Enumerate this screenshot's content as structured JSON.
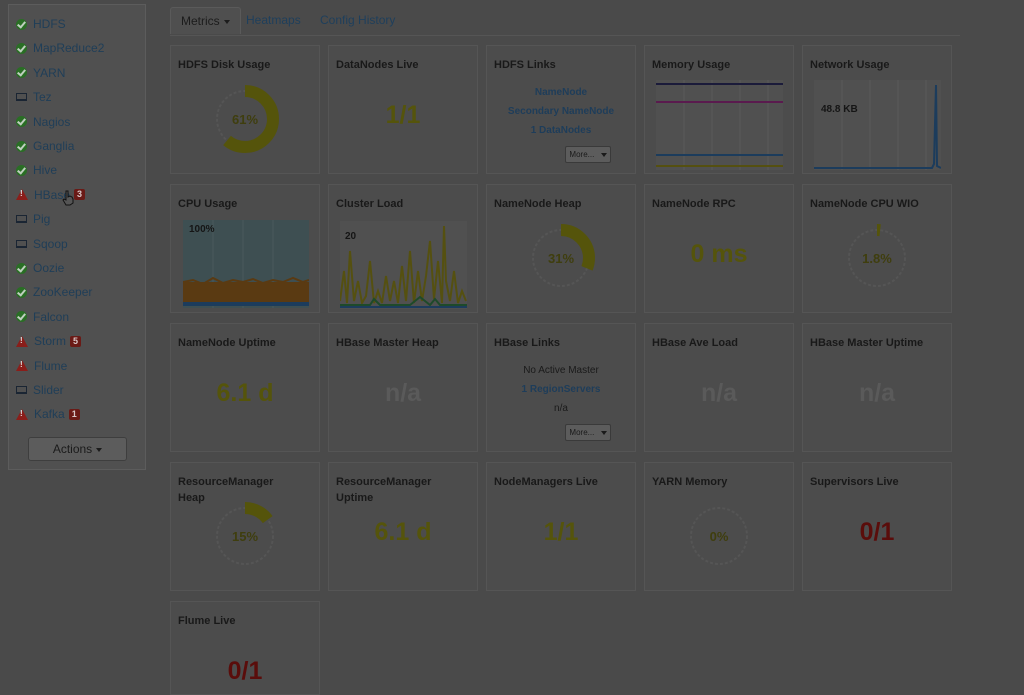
{
  "sidebar": {
    "items": [
      {
        "label": "HDFS",
        "status": "ok",
        "badge": ""
      },
      {
        "label": "MapReduce2",
        "status": "ok",
        "badge": ""
      },
      {
        "label": "YARN",
        "status": "ok",
        "badge": ""
      },
      {
        "label": "Tez",
        "status": "client",
        "badge": ""
      },
      {
        "label": "Nagios",
        "status": "ok",
        "badge": ""
      },
      {
        "label": "Ganglia",
        "status": "ok",
        "badge": ""
      },
      {
        "label": "Hive",
        "status": "ok",
        "badge": ""
      },
      {
        "label": "HBase",
        "status": "warn",
        "badge": "3"
      },
      {
        "label": "Pig",
        "status": "client",
        "badge": ""
      },
      {
        "label": "Sqoop",
        "status": "client",
        "badge": ""
      },
      {
        "label": "Oozie",
        "status": "ok",
        "badge": ""
      },
      {
        "label": "ZooKeeper",
        "status": "ok",
        "badge": ""
      },
      {
        "label": "Falcon",
        "status": "ok",
        "badge": ""
      },
      {
        "label": "Storm",
        "status": "warn",
        "badge": "5"
      },
      {
        "label": "Flume",
        "status": "warn",
        "badge": ""
      },
      {
        "label": "Slider",
        "status": "client",
        "badge": ""
      },
      {
        "label": "Kafka",
        "status": "warn",
        "badge": "1"
      }
    ],
    "actions_label": "Actions"
  },
  "tabs": [
    "Metrics",
    "Heatmaps",
    "Config History"
  ],
  "widgets": {
    "hdfs_disk": {
      "title": "HDFS Disk Usage",
      "value": "61%",
      "percent": 61
    },
    "datanodes_live": {
      "title": "DataNodes Live",
      "value": "1/1"
    },
    "hdfs_links": {
      "title": "HDFS Links",
      "links": [
        "NameNode",
        "Secondary NameNode",
        "1 DataNodes"
      ],
      "more": "More..."
    },
    "memory_usage": {
      "title": "Memory Usage"
    },
    "network_usage": {
      "title": "Network Usage",
      "label": "48.8 KB"
    },
    "cpu_usage": {
      "title": "CPU Usage",
      "label": "100%"
    },
    "cluster_load": {
      "title": "Cluster Load",
      "label": "20"
    },
    "namenode_heap": {
      "title": "NameNode Heap",
      "value": "31%",
      "percent": 31
    },
    "namenode_rpc": {
      "title": "NameNode RPC",
      "value": "0 ms"
    },
    "namenode_cpu": {
      "title": "NameNode CPU WIO",
      "value": "1.8%",
      "percent": 1.8
    },
    "namenode_uptime": {
      "title": "NameNode Uptime",
      "value": "6.1 d"
    },
    "hbase_master_heap": {
      "title": "HBase Master Heap",
      "value": "n/a"
    },
    "hbase_links": {
      "title": "HBase Links",
      "line1": "No Active Master",
      "line2": "1 RegionServers",
      "line3": "n/a",
      "more": "More..."
    },
    "hbase_ave_load": {
      "title": "HBase Ave Load",
      "value": "n/a"
    },
    "hbase_master_uptime": {
      "title": "HBase Master Uptime",
      "value": "n/a"
    },
    "rm_heap": {
      "title": "ResourceManager Heap",
      "value": "15%",
      "percent": 15
    },
    "rm_uptime": {
      "title": "ResourceManager Uptime",
      "value": "6.1 d"
    },
    "nodemanagers_live": {
      "title": "NodeManagers Live",
      "value": "1/1"
    },
    "yarn_memory": {
      "title": "YARN Memory",
      "value": "0%",
      "percent": 0
    },
    "supervisors_live": {
      "title": "Supervisors Live",
      "value": "0/1"
    },
    "flume_live": {
      "title": "Flume Live",
      "value": "0/1"
    }
  },
  "colors": {
    "olive": "#55540b",
    "red": "#5a0d0b",
    "link": "#1e3d5a"
  }
}
